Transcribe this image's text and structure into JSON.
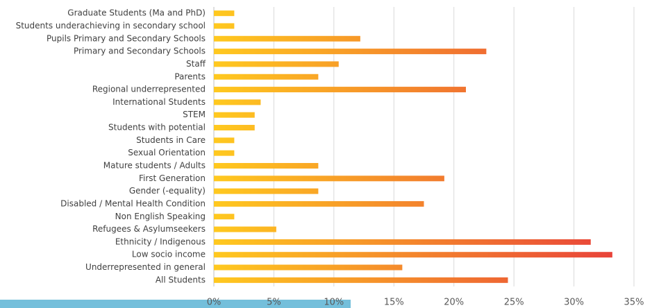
{
  "chart_data": {
    "type": "bar",
    "orientation": "horizontal",
    "categories": [
      "Graduate Students (Ma and PhD)",
      "Students underachieving in secondary school",
      "Pupils Primary and Secondary Schools",
      "Primary and Secondary Schools",
      "Staff",
      "Parents",
      "Regional underrepresented",
      "International Students",
      "STEM",
      "Students with potential",
      "Students in Care",
      "Sexual Orientation",
      "Mature students / Adults",
      "First Generation",
      "Gender (-equality)",
      "Disabled / Mental Health Condition",
      "Non English Speaking",
      "Refugees & Asylumseekers",
      "Ethnicity / Indigenous",
      "Low socio income",
      "Underrepresented in general",
      "All Students"
    ],
    "values": [
      1.7,
      1.7,
      12.2,
      22.7,
      10.4,
      8.7,
      21.0,
      3.9,
      3.4,
      3.4,
      1.7,
      1.7,
      8.7,
      19.2,
      8.7,
      17.5,
      1.7,
      5.2,
      31.4,
      33.2,
      15.7,
      24.5
    ],
    "gradient": [
      "#ffc91f",
      "#e8413a"
    ],
    "xlim": [
      0,
      35
    ],
    "xticks": [
      {
        "value": 0,
        "label": "0%"
      },
      {
        "value": 5,
        "label": "5%"
      },
      {
        "value": 10,
        "label": "10%"
      },
      {
        "value": 15,
        "label": "15%"
      },
      {
        "value": 20,
        "label": "20%"
      },
      {
        "value": 25,
        "label": "25%"
      },
      {
        "value": 30,
        "label": "30%"
      },
      {
        "value": 35,
        "label": "35%"
      }
    ],
    "grid": true
  }
}
